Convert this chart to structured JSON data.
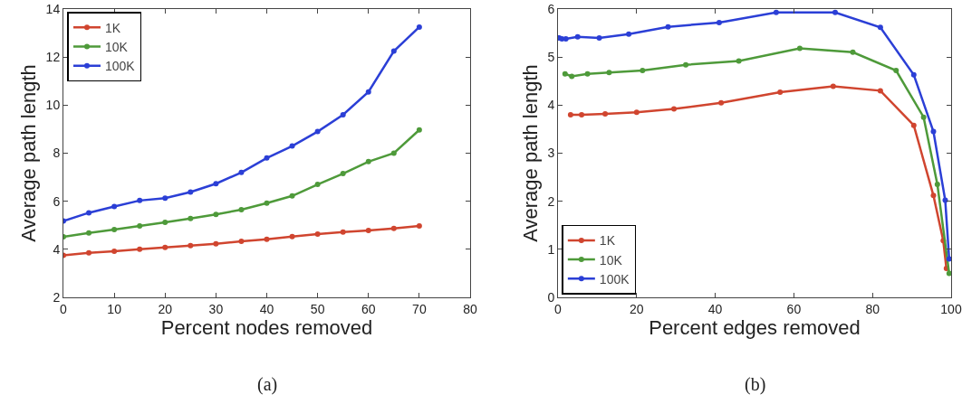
{
  "chart_data": [
    {
      "type": "line",
      "xlabel": "Percent nodes removed",
      "ylabel": "Average path length",
      "annotations": [
        "(a)"
      ],
      "x": [
        0,
        5,
        10,
        15,
        20,
        25,
        30,
        35,
        40,
        45,
        50,
        55,
        60,
        65,
        70
      ],
      "series": [
        {
          "name": "1K",
          "color": "#d0452f",
          "values": [
            3.75,
            3.85,
            3.92,
            4.0,
            4.08,
            4.15,
            4.23,
            4.33,
            4.42,
            4.53,
            4.63,
            4.72,
            4.78,
            4.87,
            4.97
          ]
        },
        {
          "name": "10K",
          "color": "#4e9a3a",
          "values": [
            4.52,
            4.68,
            4.82,
            4.97,
            5.12,
            5.28,
            5.45,
            5.65,
            5.92,
            6.22,
            6.7,
            7.15,
            7.65,
            8.0,
            8.97
          ]
        },
        {
          "name": "100K",
          "color": "#2b3fd6",
          "values": [
            5.18,
            5.52,
            5.78,
            6.03,
            6.13,
            6.38,
            6.73,
            7.2,
            7.8,
            8.3,
            8.9,
            9.6,
            10.55,
            12.25,
            13.25
          ]
        }
      ],
      "xlim": [
        0,
        80
      ],
      "xticks": [
        0,
        10,
        20,
        30,
        40,
        50,
        60,
        70,
        80
      ],
      "ylim": [
        2,
        14
      ],
      "yticks": [
        2,
        4,
        6,
        8,
        10,
        12,
        14
      ],
      "grid": false,
      "legend": "top left",
      "marker": "circle",
      "line_style": "solid"
    },
    {
      "type": "line",
      "xlabel": "Percent edges removed",
      "ylabel": "Average path length",
      "annotations": [
        "(b)"
      ],
      "series": [
        {
          "name": "1K",
          "color": "#d0452f",
          "x": [
            3.2,
            6,
            12,
            20,
            29.5,
            41.5,
            56.5,
            70,
            82,
            90.5,
            95.5,
            98,
            98.8
          ],
          "values": [
            3.8,
            3.8,
            3.82,
            3.85,
            3.92,
            4.05,
            4.27,
            4.39,
            4.3,
            3.58,
            2.12,
            1.18,
            0.6
          ]
        },
        {
          "name": "10K",
          "color": "#4e9a3a",
          "x": [
            1.8,
            3.5,
            7.5,
            13,
            21.5,
            32.5,
            46,
            61.5,
            75,
            86,
            93,
            96.5,
            99.5
          ],
          "values": [
            4.65,
            4.6,
            4.65,
            4.68,
            4.72,
            4.84,
            4.92,
            5.18,
            5.1,
            4.72,
            3.75,
            2.35,
            0.5
          ]
        },
        {
          "name": "100K",
          "color": "#2b3fd6",
          "x": [
            0.3,
            1,
            2,
            5,
            10.5,
            18,
            28,
            41,
            55.5,
            70.5,
            82,
            90.5,
            95.5,
            98.5,
            99.5
          ],
          "values": [
            5.4,
            5.38,
            5.38,
            5.42,
            5.4,
            5.48,
            5.63,
            5.72,
            5.93,
            5.93,
            5.62,
            4.63,
            3.45,
            2.02,
            0.8
          ]
        }
      ],
      "xlim": [
        0,
        100
      ],
      "xticks": [
        0,
        20,
        40,
        60,
        80,
        100
      ],
      "ylim": [
        0,
        6
      ],
      "yticks": [
        0,
        1,
        2,
        3,
        4,
        5,
        6
      ],
      "grid": false,
      "legend": "bottom left",
      "marker": "circle",
      "line_style": "solid"
    }
  ]
}
